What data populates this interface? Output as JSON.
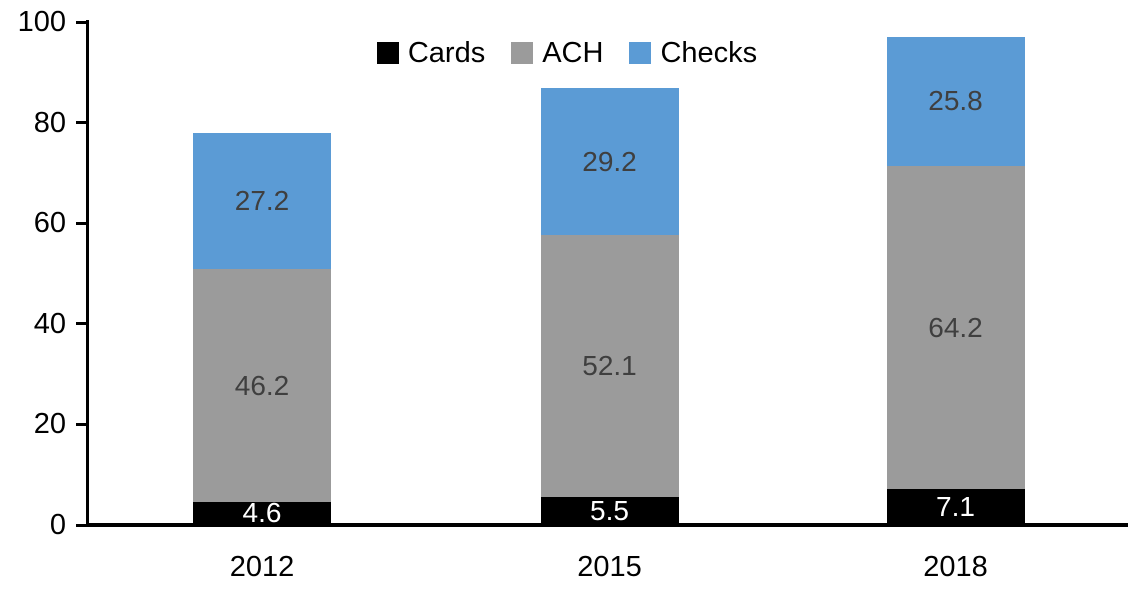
{
  "chart_data": {
    "type": "bar",
    "stacked": true,
    "title": "",
    "xlabel": "",
    "ylabel": "",
    "categories": [
      "2012",
      "2015",
      "2018"
    ],
    "series": [
      {
        "name": "Cards",
        "color": "#000000",
        "label_color": "#ffffff",
        "values": [
          4.6,
          5.5,
          7.1
        ]
      },
      {
        "name": "ACH",
        "color": "#9b9b9b",
        "label_color": "#3f3f3f",
        "values": [
          46.2,
          52.1,
          64.2
        ]
      },
      {
        "name": "Checks",
        "color": "#5b9bd5",
        "label_color": "#3f3f3f",
        "values": [
          27.2,
          29.2,
          25.8
        ]
      }
    ],
    "totals": [
      78.0,
      86.8,
      97.1
    ],
    "ylim": [
      0,
      100
    ],
    "yticks": [
      0,
      20,
      40,
      60,
      80,
      100
    ],
    "legend_position": "top-center",
    "grid": false,
    "axis_color": "#000000",
    "background": "#ffffff"
  }
}
